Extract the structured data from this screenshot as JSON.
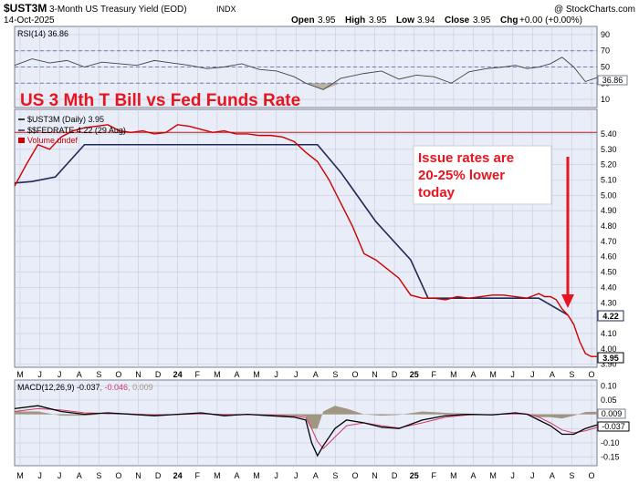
{
  "header": {
    "symbol": "$UST3M",
    "name": "3-Month US Treasury Yield (EOD)",
    "exchange": "INDX",
    "date": "14-Oct-2025",
    "copyright": "@ StockCharts.com",
    "open_label": "Open",
    "open": "3.95",
    "high_label": "High",
    "high": "3.95",
    "low_label": "Low",
    "low": "3.94",
    "close_label": "Close",
    "close": "3.95",
    "chg_label": "Chg",
    "chg": "+0.00 (+0.00%)"
  },
  "chart_data": [
    {
      "type": "line",
      "panel": "rsi",
      "legend": "RSI(14) 36.86",
      "ylim": [
        0,
        100
      ],
      "ticks": [
        "90",
        "70",
        "50",
        "30",
        "10"
      ],
      "tick_values": [
        90,
        70,
        50,
        30,
        10
      ],
      "reference_levels": [
        70,
        50,
        30
      ],
      "last_value": "36.86",
      "x": [
        0,
        0.03,
        0.06,
        0.09,
        0.12,
        0.15,
        0.18,
        0.21,
        0.24,
        0.27,
        0.3,
        0.33,
        0.36,
        0.39,
        0.42,
        0.45,
        0.48,
        0.5,
        0.53,
        0.56,
        0.6,
        0.63,
        0.66,
        0.69,
        0.72,
        0.75,
        0.78,
        0.81,
        0.84,
        0.86,
        0.88,
        0.9,
        0.92,
        0.94,
        0.96,
        0.98,
        1.0
      ],
      "values": [
        52,
        60,
        55,
        58,
        50,
        56,
        54,
        52,
        58,
        55,
        52,
        48,
        50,
        54,
        47,
        45,
        38,
        30,
        22,
        36,
        42,
        45,
        35,
        40,
        38,
        30,
        44,
        48,
        50,
        52,
        48,
        50,
        54,
        62,
        50,
        32,
        36.86
      ]
    },
    {
      "type": "line",
      "panel": "price",
      "annotation_title": "US 3 Mth T Bill vs Fed Funds Rate",
      "callout": [
        "Issue rates are",
        "20-25% lower",
        "today"
      ],
      "ylim": [
        3.88,
        5.56
      ],
      "ticks": [
        "5.40",
        "5.30",
        "5.20",
        "5.10",
        "5.00",
        "4.90",
        "4.80",
        "4.70",
        "4.60",
        "4.50",
        "4.40",
        "4.30",
        "4.20",
        "4.10",
        "4.00",
        "3.90"
      ],
      "tick_values": [
        5.4,
        5.3,
        5.2,
        5.1,
        5.0,
        4.9,
        4.8,
        4.7,
        4.6,
        4.5,
        4.4,
        4.3,
        4.2,
        4.1,
        4.0,
        3.9
      ],
      "horizontal_line": 5.41,
      "legend": [
        {
          "label": "$UST3M (Daily) 3.95",
          "color": "#000000"
        },
        {
          "label": "$$FEDRATE 4.22 (29 Aug)",
          "color": "#1f2a56"
        },
        {
          "label": "Volume undef",
          "color": "#cc0000"
        }
      ],
      "series": [
        {
          "name": "$UST3M (Daily)",
          "color": "#cc0000",
          "x": [
            0,
            0.02,
            0.04,
            0.06,
            0.08,
            0.1,
            0.12,
            0.14,
            0.16,
            0.18,
            0.2,
            0.22,
            0.24,
            0.26,
            0.28,
            0.3,
            0.32,
            0.34,
            0.36,
            0.38,
            0.4,
            0.42,
            0.44,
            0.46,
            0.48,
            0.5,
            0.52,
            0.54,
            0.56,
            0.58,
            0.6,
            0.62,
            0.64,
            0.66,
            0.68,
            0.7,
            0.72,
            0.74,
            0.76,
            0.78,
            0.8,
            0.82,
            0.84,
            0.86,
            0.88,
            0.9,
            0.91,
            0.92,
            0.93,
            0.94,
            0.95,
            0.96,
            0.97,
            0.98,
            0.99,
            1.0
          ],
          "values": [
            5.06,
            5.2,
            5.33,
            5.3,
            5.38,
            5.42,
            5.44,
            5.45,
            5.46,
            5.42,
            5.41,
            5.42,
            5.4,
            5.41,
            5.46,
            5.45,
            5.43,
            5.41,
            5.42,
            5.4,
            5.4,
            5.39,
            5.39,
            5.38,
            5.35,
            5.28,
            5.22,
            5.1,
            4.95,
            4.8,
            4.62,
            4.58,
            4.52,
            4.46,
            4.35,
            4.33,
            4.33,
            4.32,
            4.34,
            4.33,
            4.34,
            4.35,
            4.35,
            4.34,
            4.33,
            4.36,
            4.34,
            4.34,
            4.32,
            4.26,
            4.22,
            4.16,
            4.05,
            3.97,
            3.95,
            3.95
          ]
        },
        {
          "name": "$$FEDRATE",
          "color": "#1f2a56",
          "x": [
            0,
            0.03,
            0.07,
            0.12,
            0.22,
            0.52,
            0.56,
            0.62,
            0.68,
            0.71,
            0.75,
            0.9,
            0.95
          ],
          "values": [
            5.08,
            5.09,
            5.12,
            5.33,
            5.33,
            5.33,
            5.15,
            4.83,
            4.58,
            4.33,
            4.33,
            4.33,
            4.22
          ]
        }
      ],
      "last_value_labels": [
        "4.22",
        "3.95"
      ]
    },
    {
      "type": "line",
      "panel": "macd",
      "legend": "MACD(12,26,9) -0.037, -0.046, 0.009",
      "legend_parts": [
        "MACD(12,26,9) -0.037",
        ", -0.046",
        ", 0.009"
      ],
      "ylim": [
        -0.18,
        0.12
      ],
      "ticks": [
        "0.10",
        "0.05",
        "-0.00",
        "-0.05",
        "-0.10",
        "-0.15"
      ],
      "tick_values": [
        0.1,
        0.05,
        0.0,
        -0.05,
        -0.1,
        -0.15
      ],
      "last_value_labels": [
        "0.009",
        "-0.037"
      ],
      "x": [
        0,
        0.04,
        0.08,
        0.12,
        0.16,
        0.2,
        0.24,
        0.28,
        0.32,
        0.36,
        0.4,
        0.44,
        0.48,
        0.5,
        0.51,
        0.52,
        0.53,
        0.55,
        0.57,
        0.6,
        0.63,
        0.66,
        0.7,
        0.74,
        0.78,
        0.82,
        0.86,
        0.88,
        0.9,
        0.92,
        0.94,
        0.96,
        0.98,
        1.0
      ],
      "series": [
        {
          "name": "MACD",
          "color": "#000000",
          "values": [
            0.02,
            0.03,
            0.01,
            0.0,
            0.005,
            0.0,
            -0.005,
            0.0,
            0.005,
            -0.005,
            0.0,
            -0.005,
            -0.01,
            -0.02,
            -0.1,
            -0.145,
            -0.11,
            -0.05,
            -0.02,
            -0.03,
            -0.045,
            -0.05,
            -0.02,
            -0.005,
            0.0,
            -0.002,
            0.005,
            0.0,
            -0.02,
            -0.04,
            -0.07,
            -0.07,
            -0.05,
            -0.037
          ]
        },
        {
          "name": "Signal",
          "color": "#d13a6b",
          "values": [
            0.01,
            0.02,
            0.015,
            0.005,
            0.003,
            0.001,
            -0.002,
            -0.001,
            0.002,
            -0.001,
            -0.001,
            -0.003,
            -0.006,
            -0.012,
            -0.05,
            -0.095,
            -0.12,
            -0.08,
            -0.04,
            -0.03,
            -0.04,
            -0.048,
            -0.03,
            -0.01,
            -0.002,
            -0.001,
            0.002,
            0.001,
            -0.01,
            -0.03,
            -0.055,
            -0.065,
            -0.058,
            -0.046
          ]
        }
      ],
      "histogram_color": "#a09682"
    }
  ],
  "x_axis": {
    "labels": [
      "M",
      "J",
      "J",
      "A",
      "S",
      "O",
      "N",
      "D",
      "24",
      "F",
      "M",
      "A",
      "M",
      "J",
      "J",
      "A",
      "S",
      "O",
      "N",
      "D",
      "25",
      "F",
      "M",
      "A",
      "M",
      "J",
      "J",
      "A",
      "S",
      "O"
    ],
    "bold_labels": [
      "24",
      "25"
    ]
  },
  "colors": {
    "background": "#ffffff",
    "plot_background": "#e9edf7",
    "grid": "#c4cbe0",
    "price_red": "#cc0000",
    "fed_navy": "#1f2a56",
    "annotation_red": "#e8141f",
    "rsi_fill": "#b9b0a0"
  }
}
